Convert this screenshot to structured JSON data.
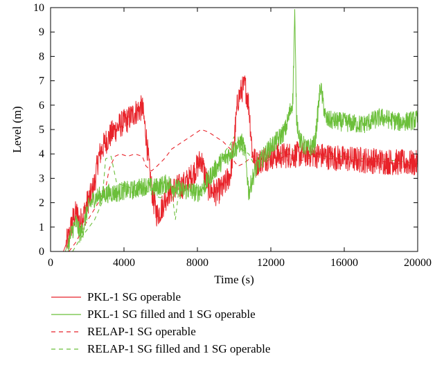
{
  "chart_data": {
    "type": "line",
    "xlabel": "Time (s)",
    "ylabel": "Level (m)",
    "xlim": [
      0,
      20000
    ],
    "ylim": [
      0,
      10
    ],
    "x_ticks": [
      0,
      4000,
      8000,
      12000,
      16000,
      20000
    ],
    "y_ticks": [
      0,
      1,
      2,
      3,
      4,
      5,
      6,
      7,
      8,
      9,
      10
    ],
    "grid": false,
    "legend_position": "bottom",
    "series": [
      {
        "name": "PKL-1 SG operable",
        "color": "#e8232a",
        "dash": "solid",
        "noise": 0.55,
        "points": [
          [
            700,
            0
          ],
          [
            1000,
            0.6
          ],
          [
            1200,
            1.3
          ],
          [
            1400,
            1.6
          ],
          [
            1600,
            1.2
          ],
          [
            1800,
            1.5
          ],
          [
            2000,
            2.0
          ],
          [
            2200,
            2.3
          ],
          [
            2400,
            2.8
          ],
          [
            2600,
            3.8
          ],
          [
            2800,
            4.2
          ],
          [
            3000,
            4.5
          ],
          [
            3400,
            4.9
          ],
          [
            3800,
            5.2
          ],
          [
            4200,
            5.4
          ],
          [
            4600,
            5.7
          ],
          [
            5000,
            5.9
          ],
          [
            5200,
            4.8
          ],
          [
            5400,
            3.2
          ],
          [
            5600,
            2.1
          ],
          [
            5800,
            1.5
          ],
          [
            6000,
            1.7
          ],
          [
            6400,
            2.4
          ],
          [
            6800,
            2.6
          ],
          [
            7200,
            2.7
          ],
          [
            7600,
            3.0
          ],
          [
            8000,
            3.5
          ],
          [
            8200,
            3.8
          ],
          [
            8400,
            3.2
          ],
          [
            8600,
            2.6
          ],
          [
            9000,
            2.4
          ],
          [
            9400,
            2.6
          ],
          [
            9800,
            3.2
          ],
          [
            10000,
            4.5
          ],
          [
            10200,
            6.2
          ],
          [
            10400,
            6.6
          ],
          [
            10600,
            6.8
          ],
          [
            10800,
            6.0
          ],
          [
            11000,
            4.0
          ],
          [
            11200,
            3.6
          ],
          [
            11600,
            3.8
          ],
          [
            12000,
            3.9
          ],
          [
            14000,
            4.0
          ],
          [
            16000,
            3.8
          ],
          [
            18000,
            3.7
          ],
          [
            20000,
            3.6
          ]
        ]
      },
      {
        "name": "PKL-1 SG filled and 1 SG operable",
        "color": "#6bbf3a",
        "dash": "solid",
        "noise": 0.4,
        "points": [
          [
            800,
            0
          ],
          [
            1000,
            0.4
          ],
          [
            1200,
            0.9
          ],
          [
            1400,
            1.2
          ],
          [
            1600,
            0.7
          ],
          [
            1800,
            1.0
          ],
          [
            2000,
            1.7
          ],
          [
            2200,
            2.0
          ],
          [
            2400,
            2.2
          ],
          [
            2800,
            2.3
          ],
          [
            3200,
            2.4
          ],
          [
            3600,
            2.4
          ],
          [
            4000,
            2.5
          ],
          [
            4400,
            2.5
          ],
          [
            4800,
            2.6
          ],
          [
            5200,
            2.7
          ],
          [
            5600,
            2.6
          ],
          [
            6000,
            2.7
          ],
          [
            6400,
            2.8
          ],
          [
            6800,
            2.6
          ],
          [
            7200,
            2.5
          ],
          [
            7600,
            2.5
          ],
          [
            8000,
            2.4
          ],
          [
            8400,
            2.7
          ],
          [
            8800,
            3.2
          ],
          [
            9200,
            3.6
          ],
          [
            9600,
            3.9
          ],
          [
            10000,
            4.2
          ],
          [
            10200,
            4.3
          ],
          [
            10400,
            4.5
          ],
          [
            10600,
            4.1
          ],
          [
            10800,
            2.4
          ],
          [
            11000,
            3.0
          ],
          [
            11200,
            3.4
          ],
          [
            11600,
            3.9
          ],
          [
            12000,
            4.3
          ],
          [
            12400,
            4.6
          ],
          [
            12800,
            5.0
          ],
          [
            13200,
            6.2
          ],
          [
            13300,
            9.8
          ],
          [
            13400,
            5.5
          ],
          [
            13600,
            4.5
          ],
          [
            14000,
            4.2
          ],
          [
            14400,
            4.4
          ],
          [
            14700,
            6.8
          ],
          [
            15000,
            5.4
          ],
          [
            16000,
            5.3
          ],
          [
            17000,
            5.2
          ],
          [
            18000,
            5.5
          ],
          [
            19000,
            5.3
          ],
          [
            20000,
            5.4
          ]
        ]
      },
      {
        "name": "RELAP-1 SG operable",
        "color": "#e8232a",
        "dash": "6,5",
        "noise": 0,
        "points": [
          [
            1000,
            0
          ],
          [
            1400,
            0.4
          ],
          [
            1800,
            1.0
          ],
          [
            2200,
            1.5
          ],
          [
            2600,
            2.0
          ],
          [
            3000,
            2.6
          ],
          [
            3200,
            3.4
          ],
          [
            3500,
            3.9
          ],
          [
            3800,
            4.0
          ],
          [
            4200,
            3.9
          ],
          [
            4600,
            4.0
          ],
          [
            5000,
            3.9
          ],
          [
            5200,
            3.5
          ],
          [
            5500,
            3.3
          ],
          [
            5800,
            3.5
          ],
          [
            6200,
            3.8
          ],
          [
            6600,
            4.2
          ],
          [
            7000,
            4.4
          ],
          [
            7400,
            4.6
          ],
          [
            7800,
            4.8
          ],
          [
            8200,
            5.0
          ],
          [
            8600,
            4.9
          ],
          [
            9000,
            4.7
          ],
          [
            9400,
            4.5
          ],
          [
            9800,
            4.2
          ],
          [
            10000,
            3.7
          ],
          [
            10200,
            3.5
          ],
          [
            10500,
            3.6
          ],
          [
            11000,
            3.9
          ],
          [
            11500,
            4.0
          ],
          [
            12000,
            3.9
          ],
          [
            12500,
            3.8
          ],
          [
            13000,
            4.0
          ],
          [
            13500,
            3.7
          ],
          [
            14000,
            3.8
          ],
          [
            14500,
            3.9
          ],
          [
            15000,
            3.8
          ],
          [
            16000,
            3.8
          ],
          [
            17000,
            3.7
          ],
          [
            18000,
            3.7
          ],
          [
            19000,
            3.6
          ],
          [
            20000,
            3.5
          ]
        ]
      },
      {
        "name": "RELAP-1 SG filled and 1 SG operable",
        "color": "#6bbf3a",
        "dash": "6,5",
        "noise": 0,
        "points": [
          [
            1200,
            0
          ],
          [
            1600,
            0.5
          ],
          [
            2000,
            0.9
          ],
          [
            2400,
            1.3
          ],
          [
            2800,
            2.0
          ],
          [
            3000,
            3.8
          ],
          [
            3300,
            3.9
          ],
          [
            3600,
            2.8
          ],
          [
            4000,
            2.7
          ],
          [
            4400,
            2.6
          ],
          [
            4800,
            2.8
          ],
          [
            5200,
            2.5
          ],
          [
            5600,
            2.3
          ],
          [
            6000,
            2.2
          ],
          [
            6200,
            2.4
          ],
          [
            6600,
            2.5
          ],
          [
            6800,
            1.3
          ],
          [
            7000,
            2.6
          ],
          [
            7400,
            2.6
          ],
          [
            7800,
            2.4
          ],
          [
            8200,
            2.3
          ],
          [
            8600,
            2.7
          ],
          [
            9000,
            3.3
          ],
          [
            9400,
            4.0
          ],
          [
            9800,
            4.4
          ],
          [
            10000,
            4.7
          ],
          [
            10400,
            4.2
          ],
          [
            10800,
            4.0
          ],
          [
            11200,
            3.4
          ],
          [
            11600,
            3.6
          ],
          [
            12000,
            3.8
          ],
          [
            12500,
            4.0
          ],
          [
            13000,
            4.2
          ],
          [
            13500,
            4.1
          ],
          [
            14000,
            4.0
          ],
          [
            14500,
            3.9
          ],
          [
            15000,
            3.9
          ],
          [
            16000,
            3.9
          ],
          [
            17000,
            3.8
          ],
          [
            18000,
            3.8
          ],
          [
            19000,
            3.7
          ],
          [
            20000,
            3.6
          ]
        ]
      }
    ]
  }
}
